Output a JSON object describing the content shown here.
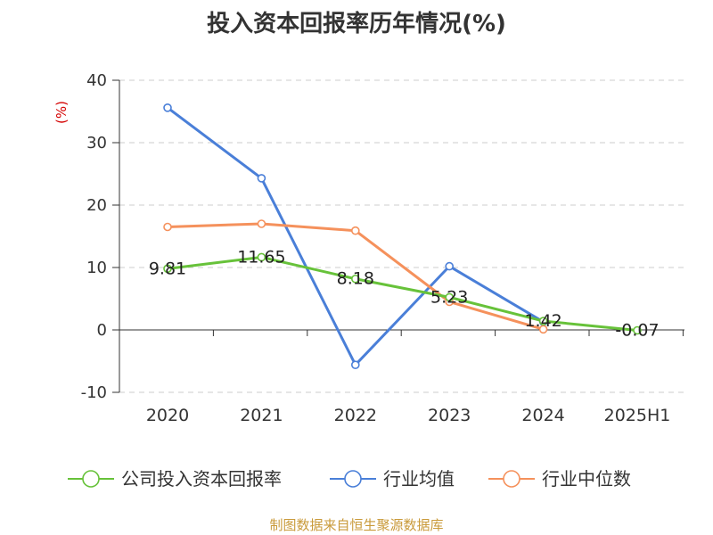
{
  "title": "投入资本回报率历年情况(%)",
  "source": "制图数据来自恒生聚源数据库",
  "colors": {
    "company": "#67c23a",
    "avg": "#4a7fd8",
    "median": "#f5915c",
    "unit": "#d40000"
  },
  "chart_data": {
    "type": "line",
    "categories": [
      "2020",
      "2021",
      "2022",
      "2023",
      "2024",
      "2025H1"
    ],
    "ylabel": "(%)",
    "ylim": [
      -10,
      40
    ],
    "yticks": [
      40,
      30,
      20,
      10,
      0,
      -10
    ],
    "grid": true,
    "legend_position": "bottom",
    "series": [
      {
        "key": "company",
        "name": "公司投入资本回报率",
        "values": [
          9.81,
          11.65,
          8.18,
          5.23,
          1.42,
          -0.07
        ],
        "labels": [
          "9.81",
          "11.65",
          "8.18",
          "5.23",
          "1.42",
          "-0.07"
        ]
      },
      {
        "key": "avg",
        "name": "行业均值",
        "values": [
          35.6,
          24.3,
          -5.6,
          10.2,
          1.3,
          null
        ]
      },
      {
        "key": "median",
        "name": "行业中位数",
        "values": [
          16.5,
          17.0,
          15.9,
          4.5,
          0.1,
          null
        ]
      }
    ]
  }
}
